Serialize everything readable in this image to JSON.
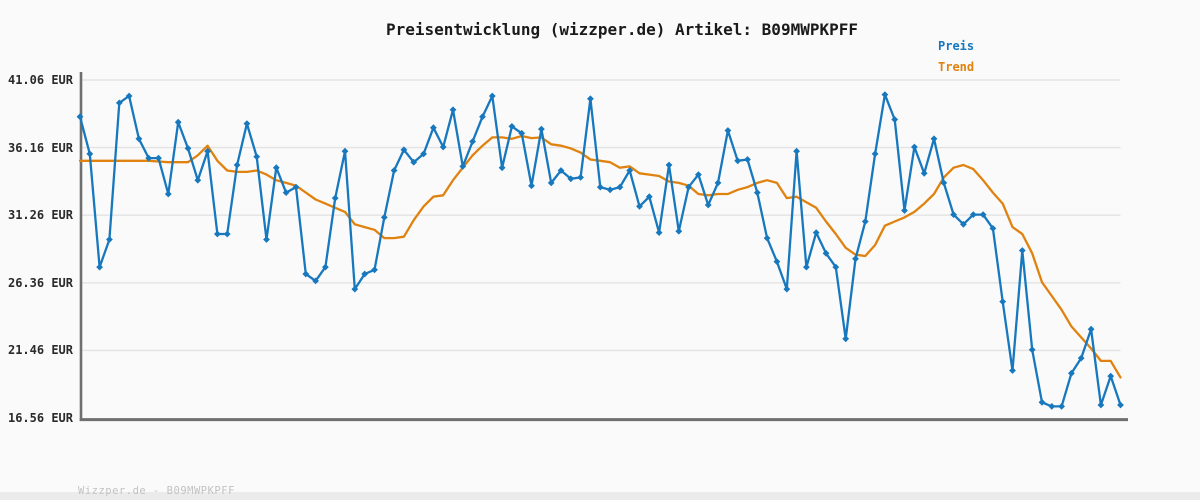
{
  "title": "Preisentwicklung (wizzper.de) Artikel: B09MWPKPFF",
  "legend": {
    "items": [
      {
        "id": "preis",
        "label": "Preis",
        "color": "#1878be"
      },
      {
        "id": "trend",
        "label": "Trend",
        "color": "#e0820f"
      }
    ]
  },
  "footer": {
    "text": "Wizzper.de - B09MWPKPFF"
  },
  "chart_data": {
    "type": "line",
    "title": "Preisentwicklung (wizzper.de) Artikel: B09MWPKPFF",
    "xlabel": "",
    "ylabel": "",
    "unit": "EUR",
    "ylim": [
      16.56,
      41.06
    ],
    "y_ticks": [
      41.06,
      36.16,
      31.26,
      26.36,
      21.46,
      16.56
    ],
    "y_tick_labels": [
      "41.06 EUR",
      "36.16 EUR",
      "31.26 EUR",
      "26.36 EUR",
      "21.46 EUR",
      "16.56 EUR"
    ],
    "grid": true,
    "legend_position": "top-right",
    "x": "index (time, unlabeled)",
    "series": [
      {
        "name": "Preis",
        "color": "#1878be",
        "markers": "diamond",
        "values": [
          38.4,
          35.7,
          27.5,
          29.5,
          39.4,
          39.9,
          36.8,
          35.4,
          35.4,
          32.8,
          38.0,
          36.1,
          33.8,
          35.9,
          29.9,
          29.9,
          34.9,
          37.9,
          35.5,
          29.5,
          34.7,
          32.9,
          33.3,
          27.0,
          26.5,
          27.5,
          32.5,
          35.9,
          25.9,
          27.0,
          27.3,
          31.1,
          34.5,
          36.0,
          35.1,
          35.7,
          37.6,
          36.2,
          38.9,
          34.8,
          36.6,
          38.4,
          39.9,
          34.7,
          37.7,
          37.2,
          33.4,
          37.5,
          33.6,
          34.5,
          33.9,
          34.0,
          39.7,
          33.3,
          33.1,
          33.3,
          34.5,
          31.9,
          32.6,
          30.0,
          34.9,
          30.1,
          33.3,
          34.2,
          32.0,
          33.6,
          37.4,
          35.2,
          35.3,
          32.9,
          29.6,
          27.9,
          25.9,
          35.9,
          27.5,
          30.0,
          28.5,
          27.5,
          22.3,
          28.1,
          30.8,
          35.7,
          40.0,
          38.2,
          31.6,
          36.2,
          34.3,
          36.8,
          33.6,
          31.3,
          30.6,
          31.3,
          31.3,
          30.3,
          25.0,
          20.0,
          28.7,
          21.5,
          17.7,
          17.4,
          17.4,
          19.8,
          20.9,
          23.0,
          17.5,
          19.6,
          17.5
        ]
      },
      {
        "name": "Trend",
        "color": "#e0820f",
        "markers": "none",
        "values": [
          35.2,
          35.2,
          35.2,
          35.2,
          35.2,
          35.2,
          35.2,
          35.2,
          35.15,
          35.1,
          35.1,
          35.1,
          35.6,
          36.3,
          35.2,
          34.5,
          34.4,
          34.4,
          34.5,
          34.2,
          33.8,
          33.6,
          33.4,
          32.9,
          32.4,
          32.1,
          31.8,
          31.5,
          30.6,
          30.4,
          30.2,
          29.6,
          29.6,
          29.7,
          30.9,
          31.9,
          32.6,
          32.7,
          33.8,
          34.7,
          35.6,
          36.3,
          36.9,
          36.9,
          36.8,
          37.0,
          36.85,
          36.9,
          36.4,
          36.3,
          36.1,
          35.8,
          35.3,
          35.2,
          35.1,
          34.7,
          34.8,
          34.3,
          34.2,
          34.1,
          33.7,
          33.6,
          33.4,
          32.8,
          32.7,
          32.8,
          32.8,
          33.1,
          33.3,
          33.6,
          33.8,
          33.6,
          32.5,
          32.6,
          32.2,
          31.8,
          30.8,
          29.9,
          28.9,
          28.4,
          28.3,
          29.1,
          30.5,
          30.8,
          31.1,
          31.5,
          32.1,
          32.8,
          34.0,
          34.7,
          34.9,
          34.6,
          33.8,
          32.9,
          32.1,
          30.4,
          29.9,
          28.5,
          26.4,
          25.4,
          24.4,
          23.2,
          22.4,
          21.6,
          20.7,
          20.7,
          19.5
        ]
      }
    ]
  },
  "colors": {
    "background": "#fafafa",
    "gridline": "#e3e3e3",
    "axis": "#6f6f6f",
    "title_text": "#1a1a1a",
    "tick_text": "#2a2a2a",
    "footer_text": "#c2c2c2",
    "footer_bar": "#ebebeb"
  }
}
